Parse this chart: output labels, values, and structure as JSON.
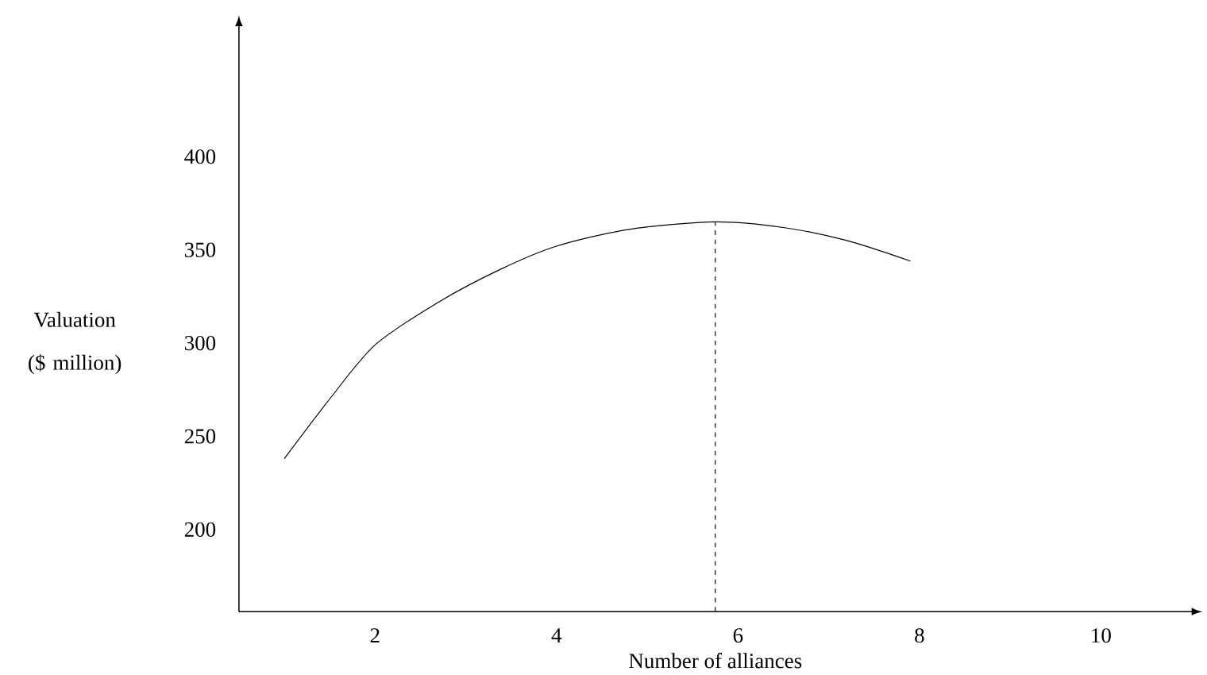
{
  "chart_data": {
    "type": "line",
    "xlabel": "Number of alliances",
    "ylabel": "Valuation ($ million)",
    "xlim": [
      0.5,
      11
    ],
    "ylim": [
      156,
      470
    ],
    "xticks": [
      2,
      4,
      6,
      8,
      10
    ],
    "yticks": [
      200,
      250,
      300,
      350,
      400
    ],
    "series": [
      {
        "color": "#000000",
        "x": [
          1.0,
          1.5,
          2.0,
          2.7,
          3.4,
          4.0,
          4.8,
          5.75,
          6.5,
          7.2,
          7.9
        ],
        "values": [
          238,
          270,
          299,
          322,
          340,
          352,
          361,
          365,
          362,
          355,
          344
        ]
      }
    ],
    "ref_lines": [
      {
        "axis": "x",
        "value": 5.75,
        "line_style": "dashed",
        "color": "#000000"
      }
    ],
    "grid": false,
    "marker": "none",
    "line_style": "solid"
  }
}
